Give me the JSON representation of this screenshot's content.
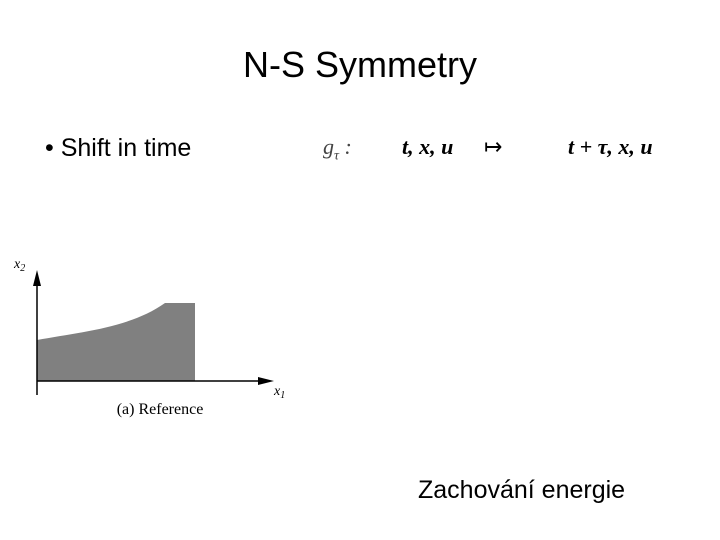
{
  "slide": {
    "title": "N-S Symmetry",
    "bullet": "Shift in time",
    "formula": {
      "map_name": "g",
      "map_sub": "τ",
      "colon": ":",
      "domain": "t, x, u",
      "arrow": "↦",
      "image": "t + τ, x, u"
    },
    "figure": {
      "y_axis": {
        "base": "x",
        "sub": "2"
      },
      "x_axis": {
        "base": "x",
        "sub": "1"
      },
      "caption": "(a) Reference"
    },
    "footer": "Zachování energie"
  }
}
